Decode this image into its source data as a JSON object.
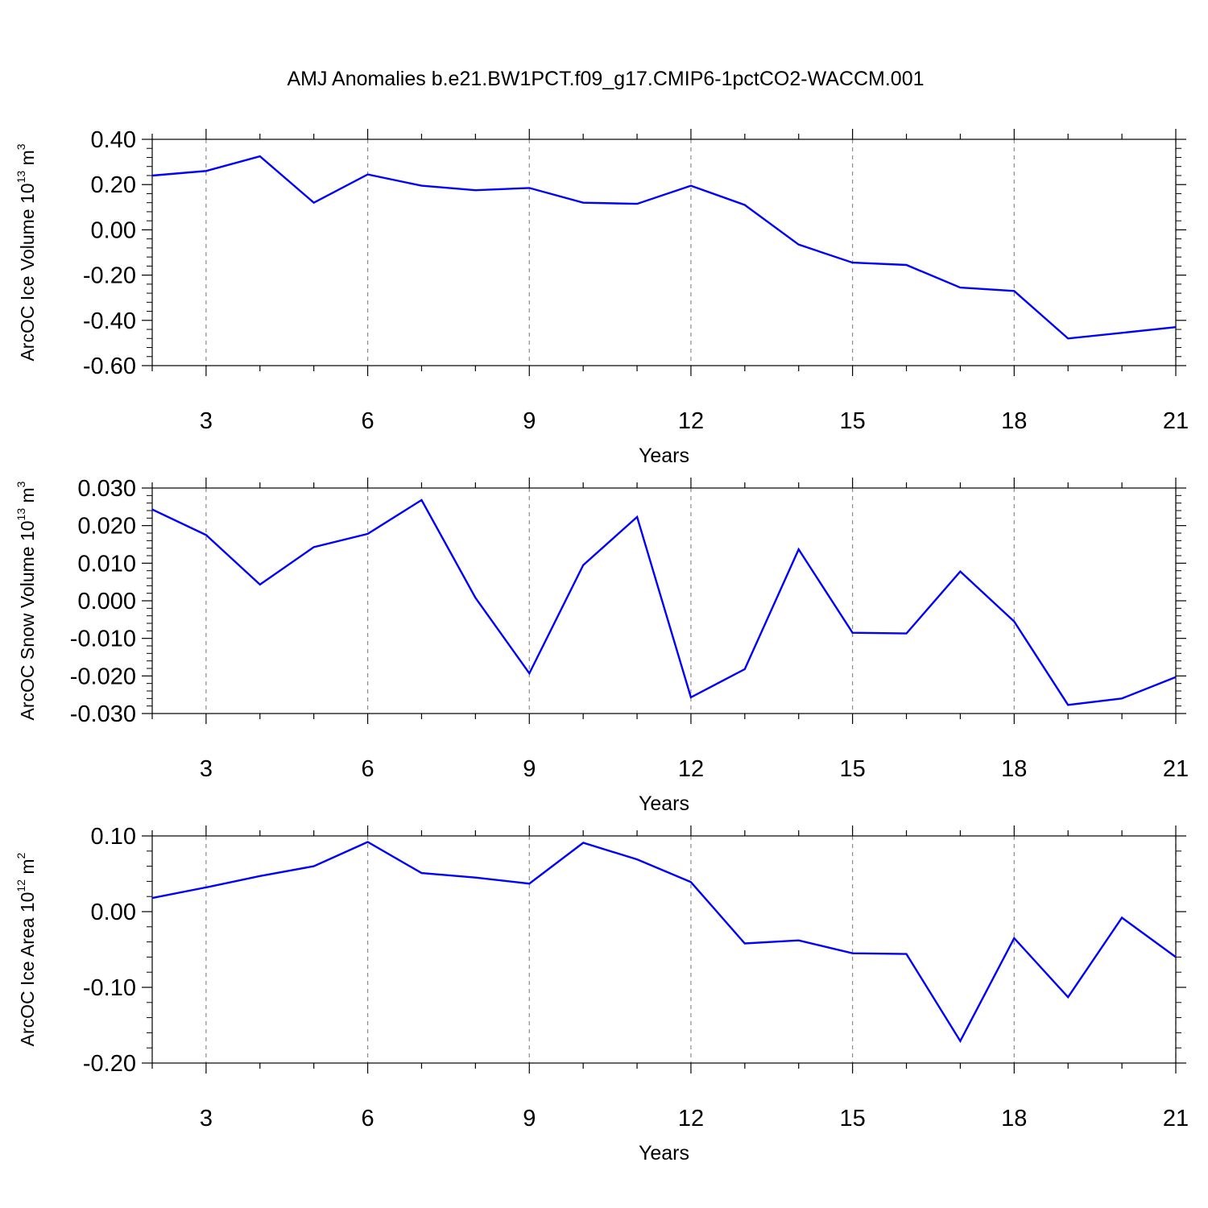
{
  "title": "AMJ Anomalies b.e21.BW1PCT.f09_g17.CMIP6-1pctCO2-WACCM.001",
  "chart_data": [
    {
      "type": "line",
      "ylabel": {
        "text": "ArcOC Ice Volume 10",
        "exp": "13",
        "unit": " m",
        "unit_exp": "3"
      },
      "xlabel": "Years",
      "xlim": [
        2,
        21
      ],
      "ylim": [
        -0.6,
        0.4
      ],
      "yticks": [
        0.4,
        0.2,
        0.0,
        -0.2,
        -0.4,
        -0.6
      ],
      "ytick_labels": [
        "0.40",
        "0.20",
        "0.00",
        "-0.20",
        "-0.40",
        "-0.60"
      ],
      "xticks": [
        3,
        6,
        9,
        12,
        15,
        18,
        21
      ],
      "xtick_labels": [
        "3",
        "6",
        "9",
        "12",
        "15",
        "18",
        "21"
      ],
      "color": "#0000ff",
      "x": [
        2,
        3,
        4,
        5,
        6,
        7,
        8,
        9,
        10,
        11,
        12,
        13,
        14,
        15,
        16,
        17,
        18,
        19,
        20,
        21
      ],
      "y": [
        0.24,
        0.26,
        0.325,
        0.12,
        0.245,
        0.195,
        0.175,
        0.185,
        0.12,
        0.115,
        0.195,
        0.11,
        -0.065,
        -0.145,
        -0.155,
        -0.255,
        -0.27,
        -0.48,
        -0.455,
        -0.43
      ]
    },
    {
      "type": "line",
      "ylabel": {
        "text": "ArcOC Snow Volume 10",
        "exp": "13",
        "unit": " m",
        "unit_exp": "3"
      },
      "xlabel": "Years",
      "xlim": [
        2,
        21
      ],
      "ylim": [
        -0.03,
        0.03
      ],
      "yticks": [
        0.03,
        0.02,
        0.01,
        0.0,
        -0.01,
        -0.02,
        -0.03
      ],
      "ytick_labels": [
        "0.030",
        "0.020",
        "0.010",
        "0.000",
        "-0.010",
        "-0.020",
        "-0.030"
      ],
      "xticks": [
        3,
        6,
        9,
        12,
        15,
        18,
        21
      ],
      "xtick_labels": [
        "3",
        "6",
        "9",
        "12",
        "15",
        "18",
        "21"
      ],
      "color": "#0000ff",
      "x": [
        2,
        3,
        4,
        5,
        6,
        7,
        8,
        9,
        10,
        11,
        12,
        13,
        14,
        15,
        16,
        17,
        18,
        19,
        20,
        21
      ],
      "y": [
        0.0243,
        0.0175,
        0.0043,
        0.0143,
        0.0178,
        0.0268,
        0.0008,
        -0.0193,
        0.0095,
        0.0223,
        -0.0257,
        -0.0182,
        0.0137,
        -0.0085,
        -0.0087,
        0.0078,
        -0.0055,
        -0.0277,
        -0.026,
        -0.0203
      ]
    },
    {
      "type": "line",
      "ylabel": {
        "text": "ArcOC Ice Area 10",
        "exp": "12",
        "unit": " m",
        "unit_exp": "2"
      },
      "xlabel": "Years",
      "xlim": [
        2,
        21
      ],
      "ylim": [
        -0.2,
        0.1
      ],
      "yticks": [
        0.1,
        0.0,
        -0.1,
        -0.2
      ],
      "ytick_labels": [
        "0.10",
        "0.00",
        "-0.10",
        "-0.20"
      ],
      "xticks": [
        3,
        6,
        9,
        12,
        15,
        18,
        21
      ],
      "xtick_labels": [
        "3",
        "6",
        "9",
        "12",
        "15",
        "18",
        "21"
      ],
      "color": "#0000ff",
      "x": [
        2,
        3,
        4,
        5,
        6,
        7,
        8,
        9,
        10,
        11,
        12,
        13,
        14,
        15,
        16,
        17,
        18,
        19,
        20,
        21
      ],
      "y": [
        0.018,
        0.032,
        0.047,
        0.06,
        0.092,
        0.051,
        0.045,
        0.037,
        0.091,
        0.069,
        0.039,
        -0.042,
        -0.038,
        -0.055,
        -0.056,
        -0.171,
        -0.035,
        -0.113,
        -0.008,
        -0.06
      ]
    }
  ]
}
